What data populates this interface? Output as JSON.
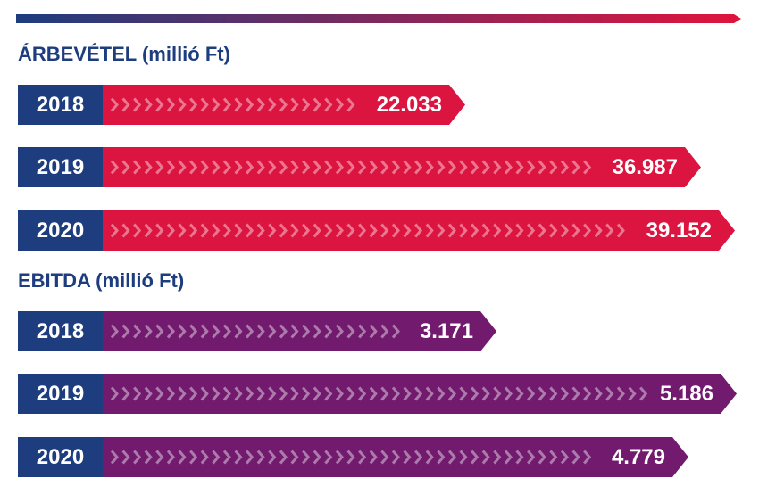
{
  "chart_data": [
    {
      "type": "bar",
      "title": "ÁRBEVÉTEL (millió Ft)",
      "categories": [
        "2018",
        "2019",
        "2020"
      ],
      "values": [
        22033,
        36987,
        39152
      ],
      "value_labels": [
        "22.033",
        "36.987",
        "39.152"
      ],
      "color": "#dc1440",
      "orientation": "horizontal"
    },
    {
      "type": "bar",
      "title": "EBITDA (millió Ft)",
      "categories": [
        "2018",
        "2019",
        "2020"
      ],
      "values": [
        3171,
        5186,
        4779
      ],
      "value_labels": [
        "3.171",
        "5.186",
        "4.779"
      ],
      "color": "#711a6e",
      "orientation": "horizontal"
    }
  ],
  "colors": {
    "year_box": "#1d3d7e",
    "title": "#1d3d7e",
    "top_bar_start": "#1d3d7e",
    "top_bar_end": "#e0143c"
  }
}
